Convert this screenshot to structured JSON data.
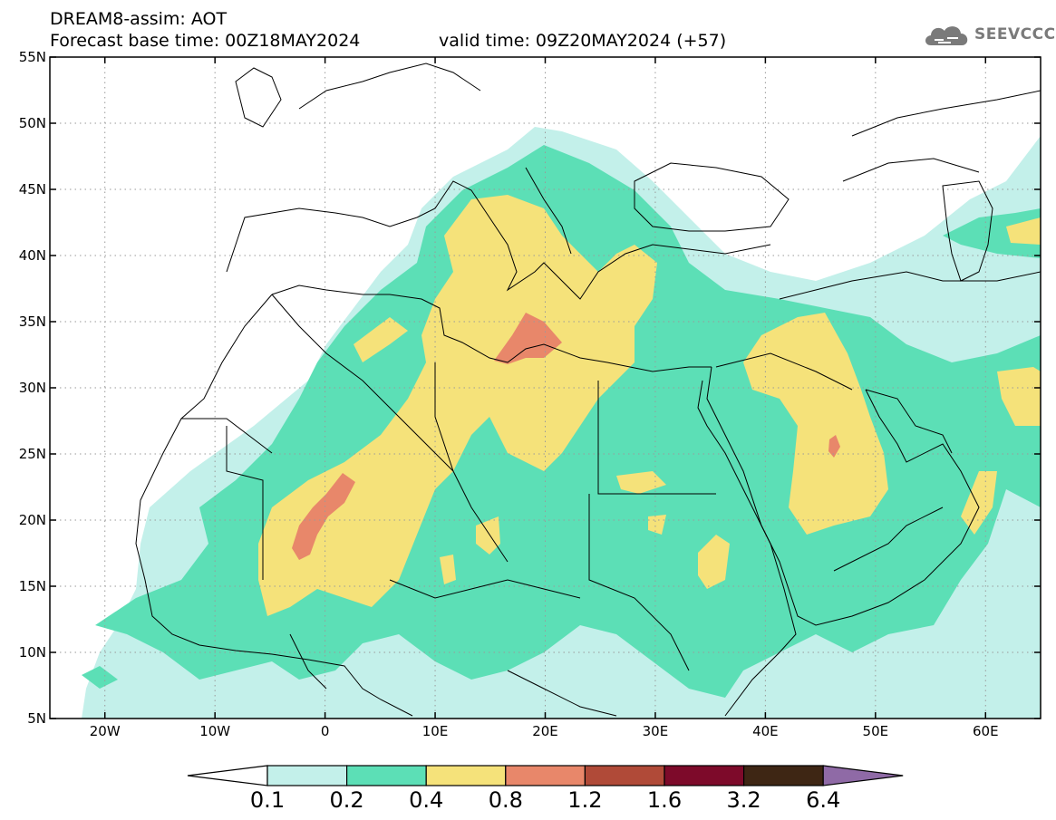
{
  "header": {
    "line1": "DREAM8-assim: AOT",
    "line2_base": "Forecast base time: 00Z18MAY2024",
    "line2_valid": "valid time: 09Z20MAY2024 (+57)"
  },
  "logo": {
    "text": "SEEVCCC",
    "icon": "cloud-icon"
  },
  "map": {
    "lon_range": [
      -25,
      65
    ],
    "lat_range": [
      5,
      55
    ],
    "lon_ticks": [
      {
        "value": -20,
        "label": "20W"
      },
      {
        "value": -10,
        "label": "10W"
      },
      {
        "value": 0,
        "label": "0"
      },
      {
        "value": 10,
        "label": "10E"
      },
      {
        "value": 20,
        "label": "20E"
      },
      {
        "value": 30,
        "label": "30E"
      },
      {
        "value": 40,
        "label": "40E"
      },
      {
        "value": 50,
        "label": "50E"
      },
      {
        "value": 60,
        "label": "60E"
      }
    ],
    "lat_ticks": [
      {
        "value": 55,
        "label": "55N"
      },
      {
        "value": 50,
        "label": "50N"
      },
      {
        "value": 45,
        "label": "45N"
      },
      {
        "value": 40,
        "label": "40N"
      },
      {
        "value": 35,
        "label": "35N"
      },
      {
        "value": 30,
        "label": "30N"
      },
      {
        "value": 25,
        "label": "25N"
      },
      {
        "value": 20,
        "label": "20N"
      },
      {
        "value": 15,
        "label": "15N"
      },
      {
        "value": 10,
        "label": "10N"
      },
      {
        "value": 5,
        "label": "5N"
      }
    ],
    "grid": "dotted"
  },
  "colorbar": {
    "labels": [
      "0.1",
      "0.2",
      "0.4",
      "0.8",
      "1.2",
      "1.6",
      "3.2",
      "6.4"
    ],
    "colors": [
      "#ffffff",
      "#c3f0ea",
      "#5cdfb6",
      "#f5e27a",
      "#e8876a",
      "#b04a38",
      "#7d0a2a",
      "#3e2614",
      "#8f6aa6"
    ]
  }
}
